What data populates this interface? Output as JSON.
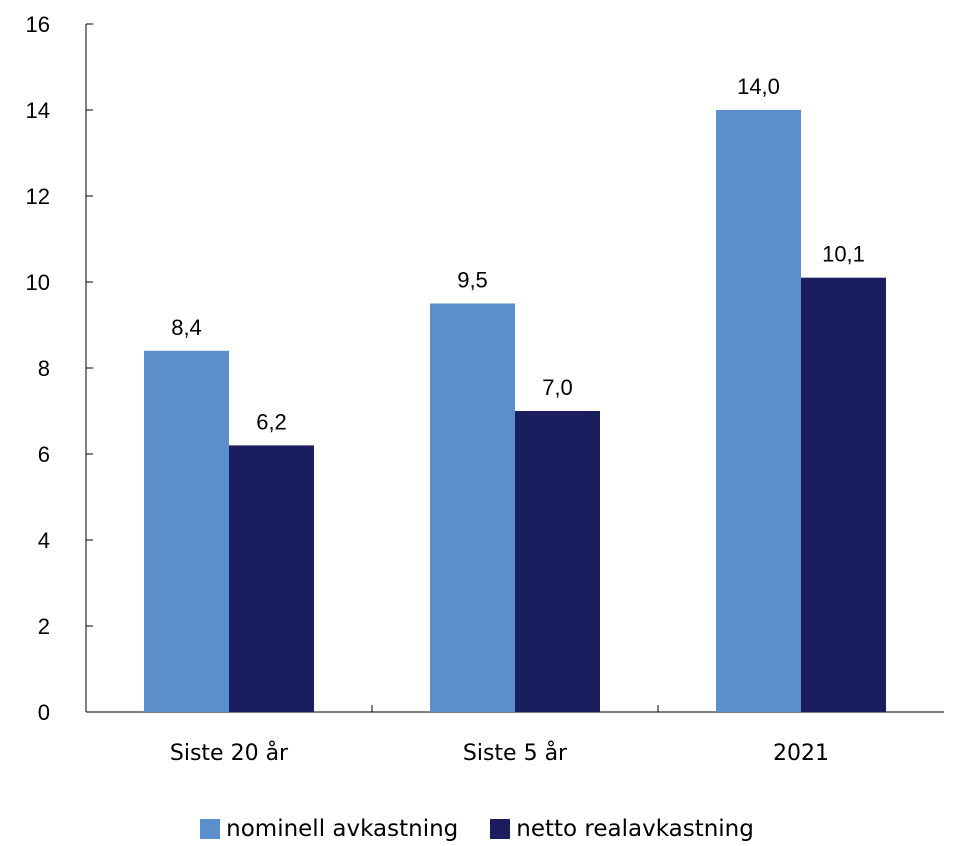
{
  "chart_data": {
    "type": "bar",
    "categories": [
      "Siste 20 år",
      "Siste 5 år",
      "2021"
    ],
    "series": [
      {
        "name": "nominell avkastning",
        "values": [
          8.4,
          9.5,
          14.0
        ],
        "color": "#5b8fcb",
        "labels": [
          "8,4",
          "9,5",
          "14,0"
        ]
      },
      {
        "name": "netto realavkastning",
        "values": [
          6.2,
          7.0,
          10.1
        ],
        "color": "#1a1d5e",
        "labels": [
          "6,2",
          "7,0",
          "10,1"
        ]
      }
    ],
    "ylim": [
      0,
      16
    ],
    "yticks": [
      0,
      2,
      4,
      6,
      8,
      10,
      12,
      14,
      16
    ],
    "title": "",
    "xlabel": "",
    "ylabel": "",
    "legend": "bottom",
    "grid": false
  }
}
